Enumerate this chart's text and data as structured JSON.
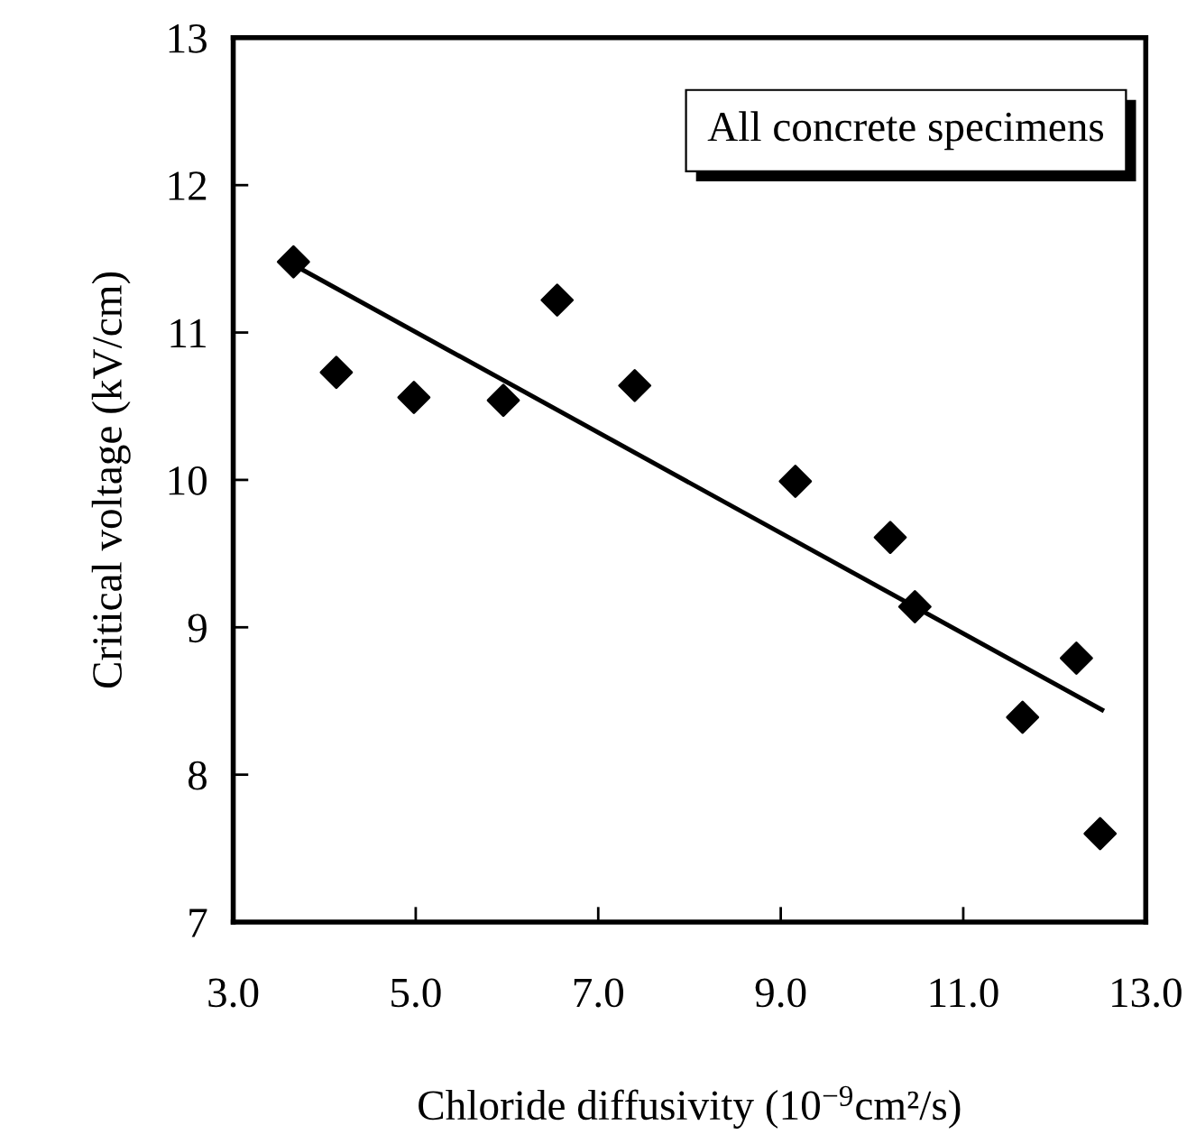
{
  "chart_data": {
    "type": "scatter",
    "xlabel": "Chloride diffusivity (10$^{−9}$cm²/s)",
    "ylabel": "Critical voltage (kV/cm)",
    "annotations": [
      "All concrete specimens"
    ],
    "xlim": [
      3.0,
      13.0
    ],
    "xticks": [
      {
        "value": 3,
        "label": "3.0"
      },
      {
        "value": 5,
        "label": "5.0"
      },
      {
        "value": 7,
        "label": "7.0"
      },
      {
        "value": 9,
        "label": "9.0"
      },
      {
        "value": 11,
        "label": "11.0"
      },
      {
        "value": 13,
        "label": "13.0"
      }
    ],
    "ylim": [
      7,
      13
    ],
    "yticks": [
      7,
      8,
      9,
      10,
      11,
      12,
      13
    ],
    "grid": false,
    "legend": false,
    "series": [
      {
        "color": "#000000",
        "marker": "diamond",
        "x": [
          3.66,
          4.13,
          4.98,
          5.96,
          6.55,
          7.4,
          9.16,
          10.2,
          10.47,
          11.65,
          12.24,
          12.5
        ],
        "values": [
          11.48,
          10.73,
          10.56,
          10.54,
          11.22,
          10.64,
          9.99,
          9.61,
          9.14,
          8.39,
          8.79,
          7.6
        ]
      },
      {
        "type": "line",
        "color": "#000000",
        "marker": "none",
        "line_style": "solid",
        "x": [
          3.66,
          12.52
        ],
        "values": [
          11.46,
          8.44
        ]
      }
    ]
  }
}
